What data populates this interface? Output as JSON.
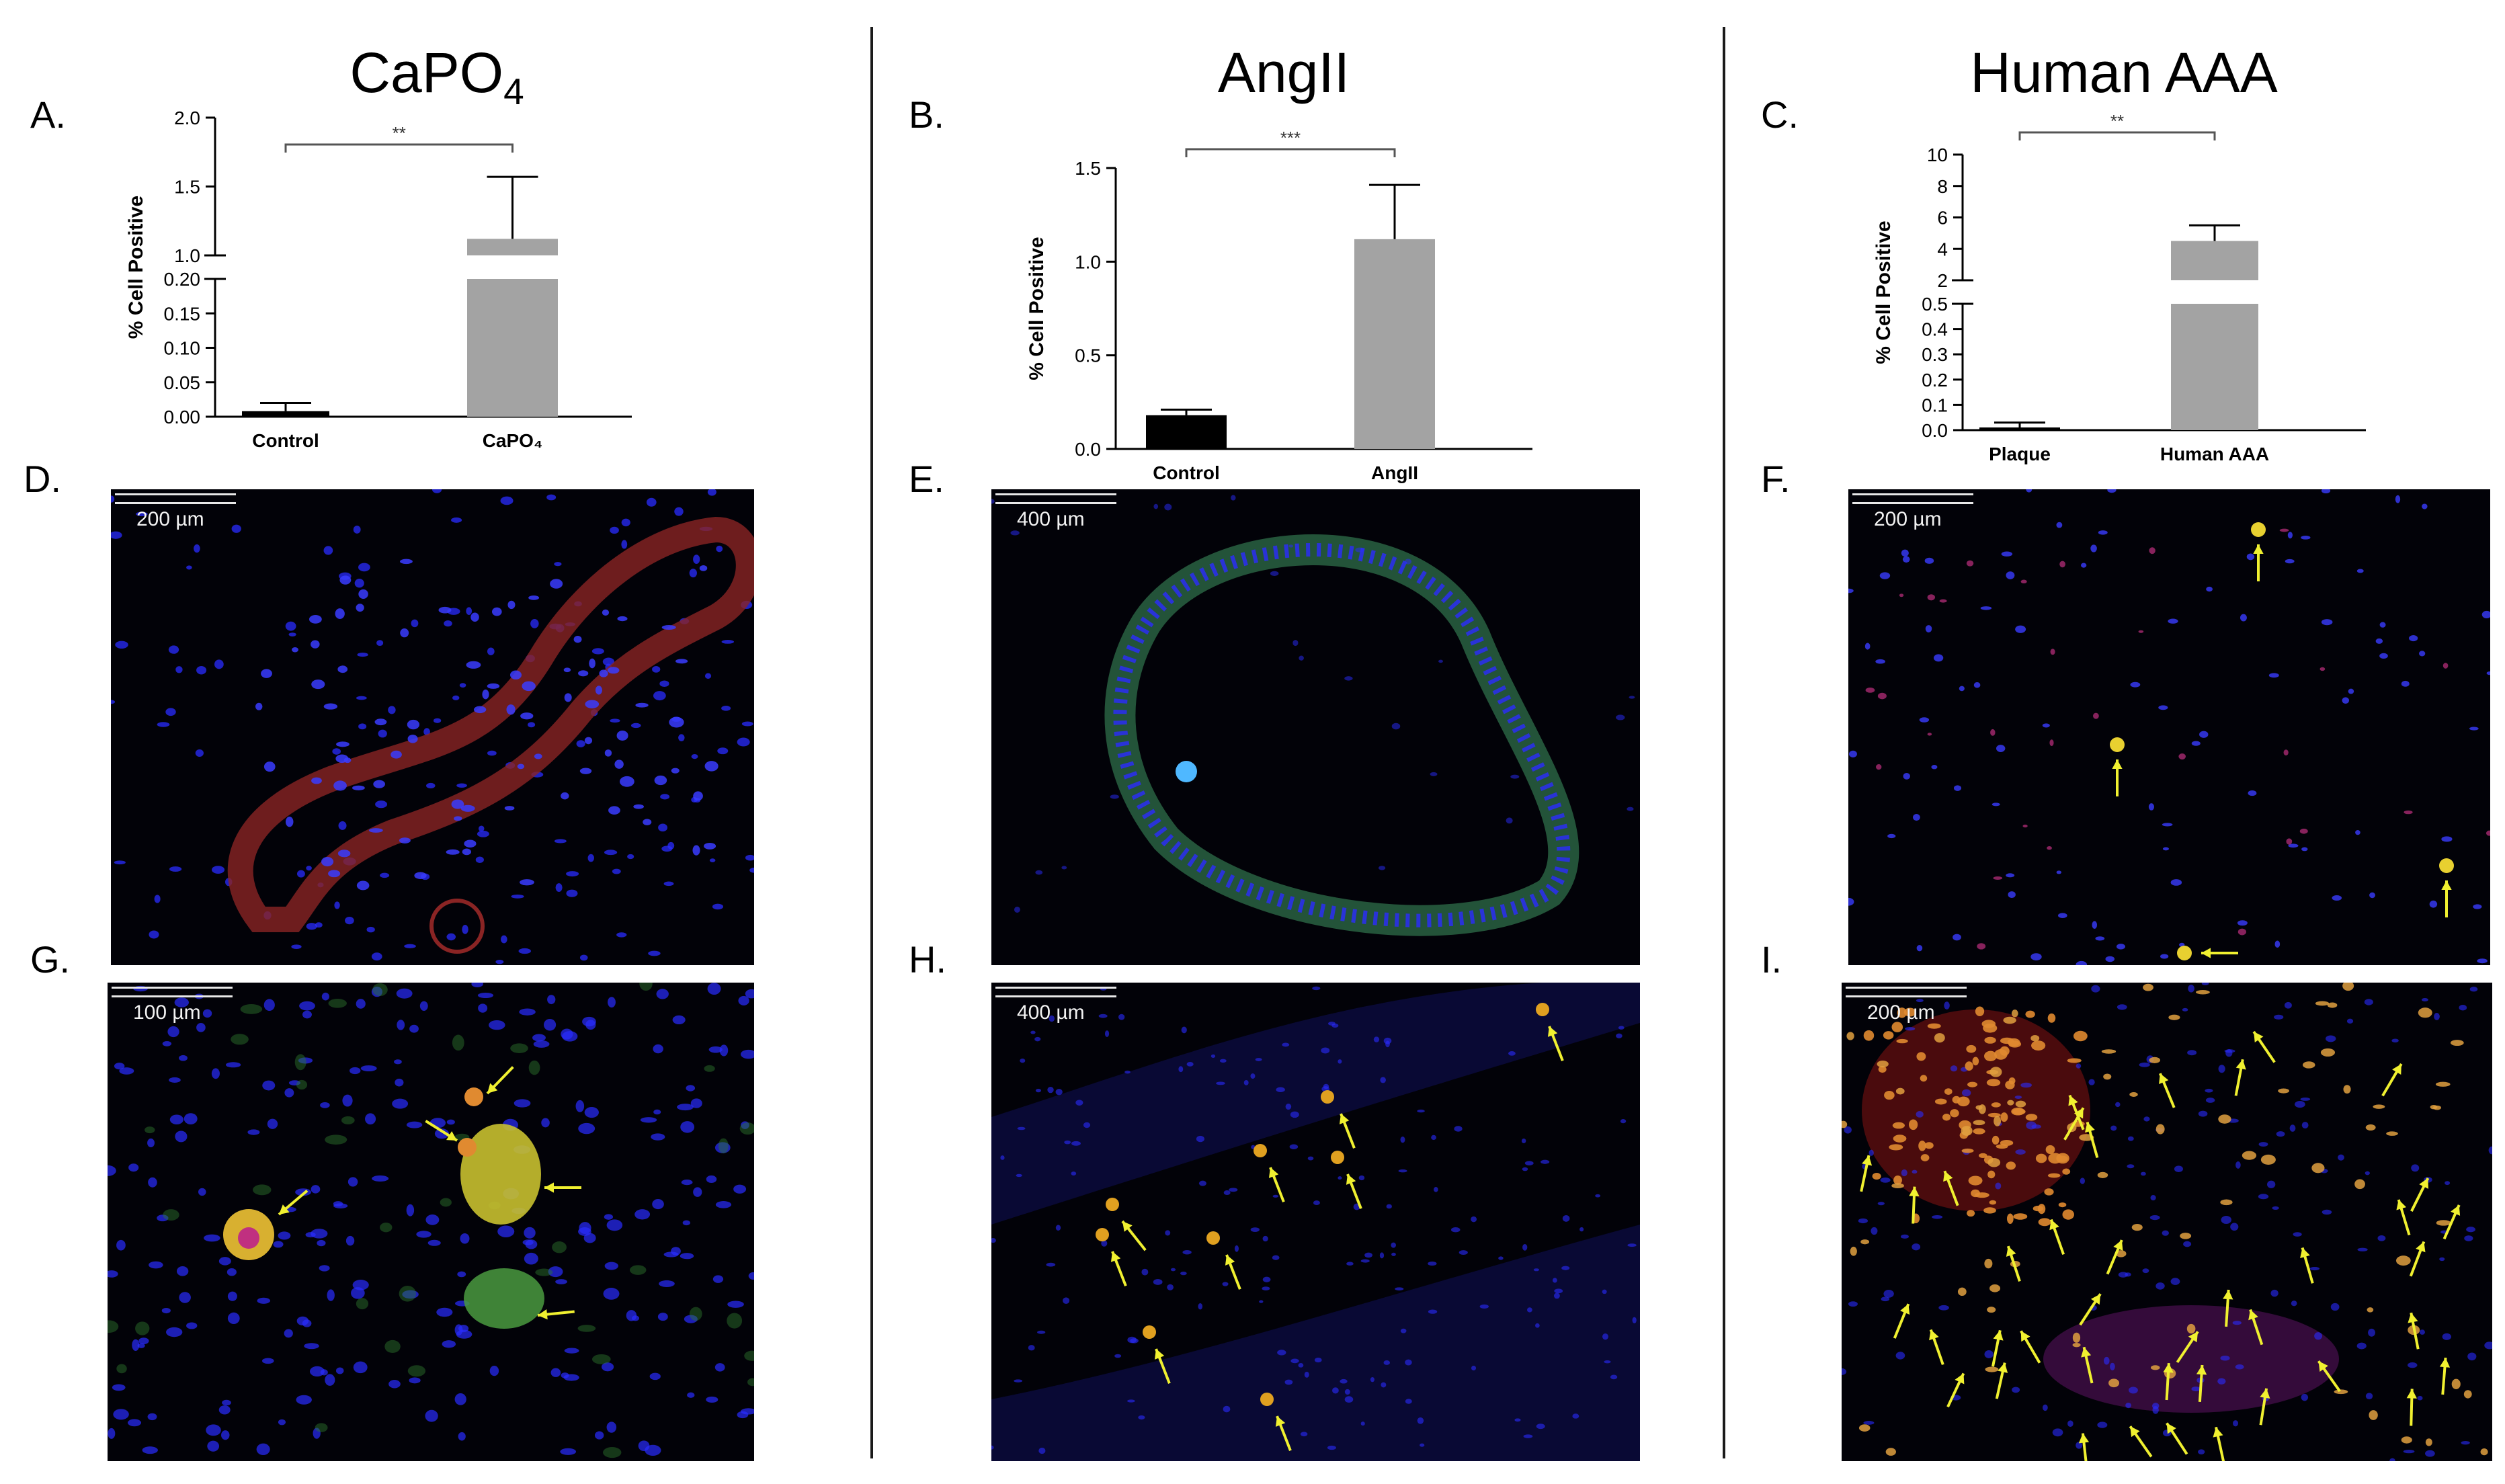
{
  "columns": [
    {
      "title": "CaPO",
      "title_sub": "4"
    },
    {
      "title": "AngII",
      "title_sub": ""
    },
    {
      "title": "Human AAA",
      "title_sub": ""
    }
  ],
  "panel_labels": [
    "A.",
    "B.",
    "C.",
    "D.",
    "E.",
    "F.",
    "G.",
    "H.",
    "I."
  ],
  "chart_data": [
    {
      "type": "bar",
      "ylabel": "% Cell Positive",
      "axis_break": true,
      "categories": [
        "Control",
        "CaPO₄"
      ],
      "values": [
        0.008,
        1.12
      ],
      "errors": [
        0.012,
        0.45
      ],
      "colors": [
        "#000000",
        "#a3a3a3"
      ],
      "segments": [
        {
          "range": [
            0,
            0.2
          ],
          "ticks": [
            "0.00",
            "0.05",
            "0.10",
            "0.15",
            "0.20"
          ]
        },
        {
          "range": [
            1.0,
            2.0
          ],
          "ticks": [
            "1.0",
            "1.5",
            "2.0"
          ]
        }
      ],
      "significance": "**"
    },
    {
      "type": "bar",
      "ylabel": "% Cell Positive",
      "axis_break": false,
      "categories": [
        "Control",
        "AngII"
      ],
      "values": [
        0.18,
        1.12
      ],
      "errors": [
        0.03,
        0.29
      ],
      "colors": [
        "#000000",
        "#a3a3a3"
      ],
      "segments": [
        {
          "range": [
            0,
            1.5
          ],
          "ticks": [
            "0.0",
            "0.5",
            "1.0",
            "1.5"
          ]
        }
      ],
      "significance": "***"
    },
    {
      "type": "bar",
      "ylabel": "% Cell Positive",
      "axis_break": true,
      "categories": [
        "Plaque",
        "Human AAA"
      ],
      "values": [
        0.01,
        4.5
      ],
      "errors": [
        0.02,
        1.0
      ],
      "colors": [
        "#000000",
        "#a3a3a3"
      ],
      "segments": [
        {
          "range": [
            0,
            0.5
          ],
          "ticks": [
            "0.0",
            "0.1",
            "0.2",
            "0.3",
            "0.4",
            "0.5"
          ]
        },
        {
          "range": [
            2,
            10
          ],
          "ticks": [
            "2",
            "4",
            "6",
            "8",
            "10"
          ]
        }
      ],
      "significance": "**"
    }
  ],
  "micrographs": [
    {
      "panel": "D",
      "scale": "200 µm",
      "stain": "red vessel wall with blue nuclei",
      "colors": [
        "#2a2cff",
        "#9e2a2a"
      ]
    },
    {
      "panel": "E",
      "scale": "400 µm",
      "stain": "green vessel ring with blue nuclei",
      "colors": [
        "#2a2cff",
        "#3f8f3a"
      ]
    },
    {
      "panel": "F",
      "scale": "200 µm",
      "stain": "sparse cells, arrows",
      "colors": [
        "#2a2cff",
        "#e0a020",
        "#ffff40"
      ]
    },
    {
      "panel": "G",
      "scale": "100 µm",
      "stain": "yellow-green clusters, arrows",
      "colors": [
        "#2a2cff",
        "#d8c030",
        "#ffff40"
      ]
    },
    {
      "panel": "H",
      "scale": "400 µm",
      "stain": "vessel with yellow cells, arrows",
      "colors": [
        "#2a2cff",
        "#e0a020",
        "#ffff40"
      ]
    },
    {
      "panel": "I",
      "scale": "200 µm",
      "stain": "dense orange cells, arrows",
      "colors": [
        "#2a2cff",
        "#e08a30",
        "#ffff40"
      ]
    }
  ]
}
